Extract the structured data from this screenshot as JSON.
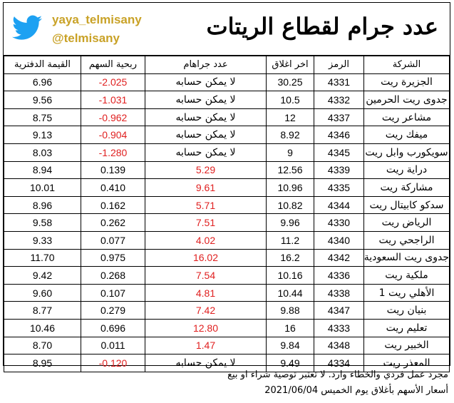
{
  "header": {
    "handle_name": "yaya_telmisany",
    "handle_at": "@telmisany",
    "title": "عدد جرام لقطاع الريتات",
    "twitter_color": "#1da1f2",
    "handle_color": "#c9a227"
  },
  "columns": {
    "name": "الشركة",
    "code": "الرمز",
    "close": "اخر اغلاق",
    "gram": "عدد جراهام",
    "eps": "ربحية السهم",
    "book": "القيمة الدفترية"
  },
  "rows": [
    {
      "name": "الجزيرة ريت",
      "code": "4331",
      "close": "30.25",
      "gram": "لا يمكن حسابه",
      "eps": "-2.025",
      "book": "6.96"
    },
    {
      "name": "جدوى ريت الحرمين",
      "code": "4332",
      "close": "10.5",
      "gram": "لا يمكن حسابه",
      "eps": "-1.031",
      "book": "9.56"
    },
    {
      "name": "مشاعر ريت",
      "code": "4337",
      "close": "12",
      "gram": "لا يمكن حسابه",
      "eps": "-0.962",
      "book": "8.75"
    },
    {
      "name": "ميفك ريت",
      "code": "4346",
      "close": "8.92",
      "gram": "لا يمكن حسابه",
      "eps": "-0.904",
      "book": "9.13"
    },
    {
      "name": "سويكورب وابل ريت",
      "code": "4345",
      "close": "9",
      "gram": "لا يمكن حسابه",
      "eps": "-1.280",
      "book": "8.03"
    },
    {
      "name": "دراية ريت",
      "code": "4339",
      "close": "12.56",
      "gram": "5.29",
      "eps": "0.139",
      "book": "8.94"
    },
    {
      "name": "مشاركة ريت",
      "code": "4335",
      "close": "10.96",
      "gram": "9.61",
      "eps": "0.410",
      "book": "10.01"
    },
    {
      "name": "سدكو كابيتال ريت",
      "code": "4344",
      "close": "10.82",
      "gram": "5.71",
      "eps": "0.162",
      "book": "8.96"
    },
    {
      "name": "الرياض ريت",
      "code": "4330",
      "close": "9.96",
      "gram": "7.51",
      "eps": "0.262",
      "book": "9.58"
    },
    {
      "name": "الراجحي ريت",
      "code": "4340",
      "close": "11.2",
      "gram": "4.02",
      "eps": "0.077",
      "book": "9.33"
    },
    {
      "name": "جدوى ريت السعودية",
      "code": "4342",
      "close": "16.2",
      "gram": "16.02",
      "eps": "0.975",
      "book": "11.70"
    },
    {
      "name": "ملكية ريت",
      "code": "4336",
      "close": "10.16",
      "gram": "7.54",
      "eps": "0.268",
      "book": "9.42"
    },
    {
      "name": "الأهلي ريت 1",
      "code": "4338",
      "close": "10.44",
      "gram": "4.81",
      "eps": "0.107",
      "book": "9.60"
    },
    {
      "name": "بنيان ريت",
      "code": "4347",
      "close": "9.88",
      "gram": "7.42",
      "eps": "0.279",
      "book": "8.77"
    },
    {
      "name": "تعليم ريت",
      "code": "4333",
      "close": "16",
      "gram": "12.80",
      "eps": "0.696",
      "book": "10.46"
    },
    {
      "name": "الخبير ريت",
      "code": "4348",
      "close": "9.84",
      "gram": "1.47",
      "eps": "0.011",
      "book": "8.70"
    },
    {
      "name": "المعذر ريت",
      "code": "4334",
      "close": "9.49",
      "gram": "لا يمكن حسابه",
      "eps": "-0.120",
      "book": "8.95"
    }
  ],
  "footer": {
    "line1": "مجرد عمل فردي والخطاء وارد. لا تعتبر توصية شراء او بيع",
    "line2": "أسعار الأسهم بأغلاق يوم الخميس 2021/06/04"
  }
}
